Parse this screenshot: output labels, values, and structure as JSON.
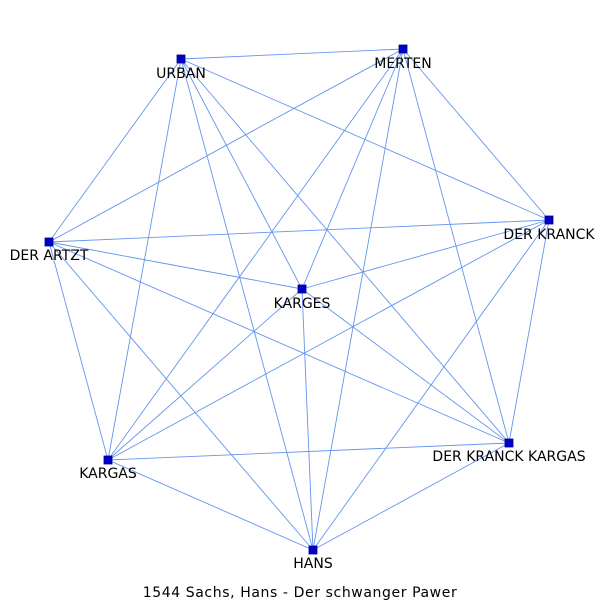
{
  "caption": "1544  Sachs,  Hans  -  Der  schwanger  Pawer",
  "colors": {
    "edge": "#6495ed",
    "node": "#0000cd",
    "node_stroke": "#000080",
    "background": "#ffffff"
  },
  "nodes": [
    {
      "id": "urban",
      "label": "URBAN"
    },
    {
      "id": "merten",
      "label": "MERTEN"
    },
    {
      "id": "der-kranck",
      "label": "DER KRANCK"
    },
    {
      "id": "der-artzt",
      "label": "DER ARTZT"
    },
    {
      "id": "karges",
      "label": "KARGES"
    },
    {
      "id": "der-kranck-kargas",
      "label": "DER KRANCK KARGAS"
    },
    {
      "id": "kargas",
      "label": "KARGAS"
    },
    {
      "id": "hans",
      "label": "HANS"
    }
  ],
  "edges": [
    [
      "urban",
      "merten"
    ],
    [
      "urban",
      "der-artzt"
    ],
    [
      "urban",
      "der-kranck"
    ],
    [
      "urban",
      "karges"
    ],
    [
      "urban",
      "der-kranck-kargas"
    ],
    [
      "urban",
      "kargas"
    ],
    [
      "urban",
      "hans"
    ],
    [
      "merten",
      "der-artzt"
    ],
    [
      "merten",
      "der-kranck"
    ],
    [
      "merten",
      "karges"
    ],
    [
      "merten",
      "der-kranck-kargas"
    ],
    [
      "merten",
      "kargas"
    ],
    [
      "merten",
      "hans"
    ],
    [
      "der-artzt",
      "der-kranck"
    ],
    [
      "der-artzt",
      "karges"
    ],
    [
      "der-artzt",
      "der-kranck-kargas"
    ],
    [
      "der-artzt",
      "kargas"
    ],
    [
      "der-artzt",
      "hans"
    ],
    [
      "der-kranck",
      "karges"
    ],
    [
      "der-kranck",
      "der-kranck-kargas"
    ],
    [
      "der-kranck",
      "kargas"
    ],
    [
      "der-kranck",
      "hans"
    ],
    [
      "karges",
      "der-kranck-kargas"
    ],
    [
      "karges",
      "kargas"
    ],
    [
      "karges",
      "hans"
    ],
    [
      "kargas",
      "der-kranck-kargas"
    ],
    [
      "kargas",
      "hans"
    ],
    [
      "hans",
      "der-kranck-kargas"
    ]
  ]
}
